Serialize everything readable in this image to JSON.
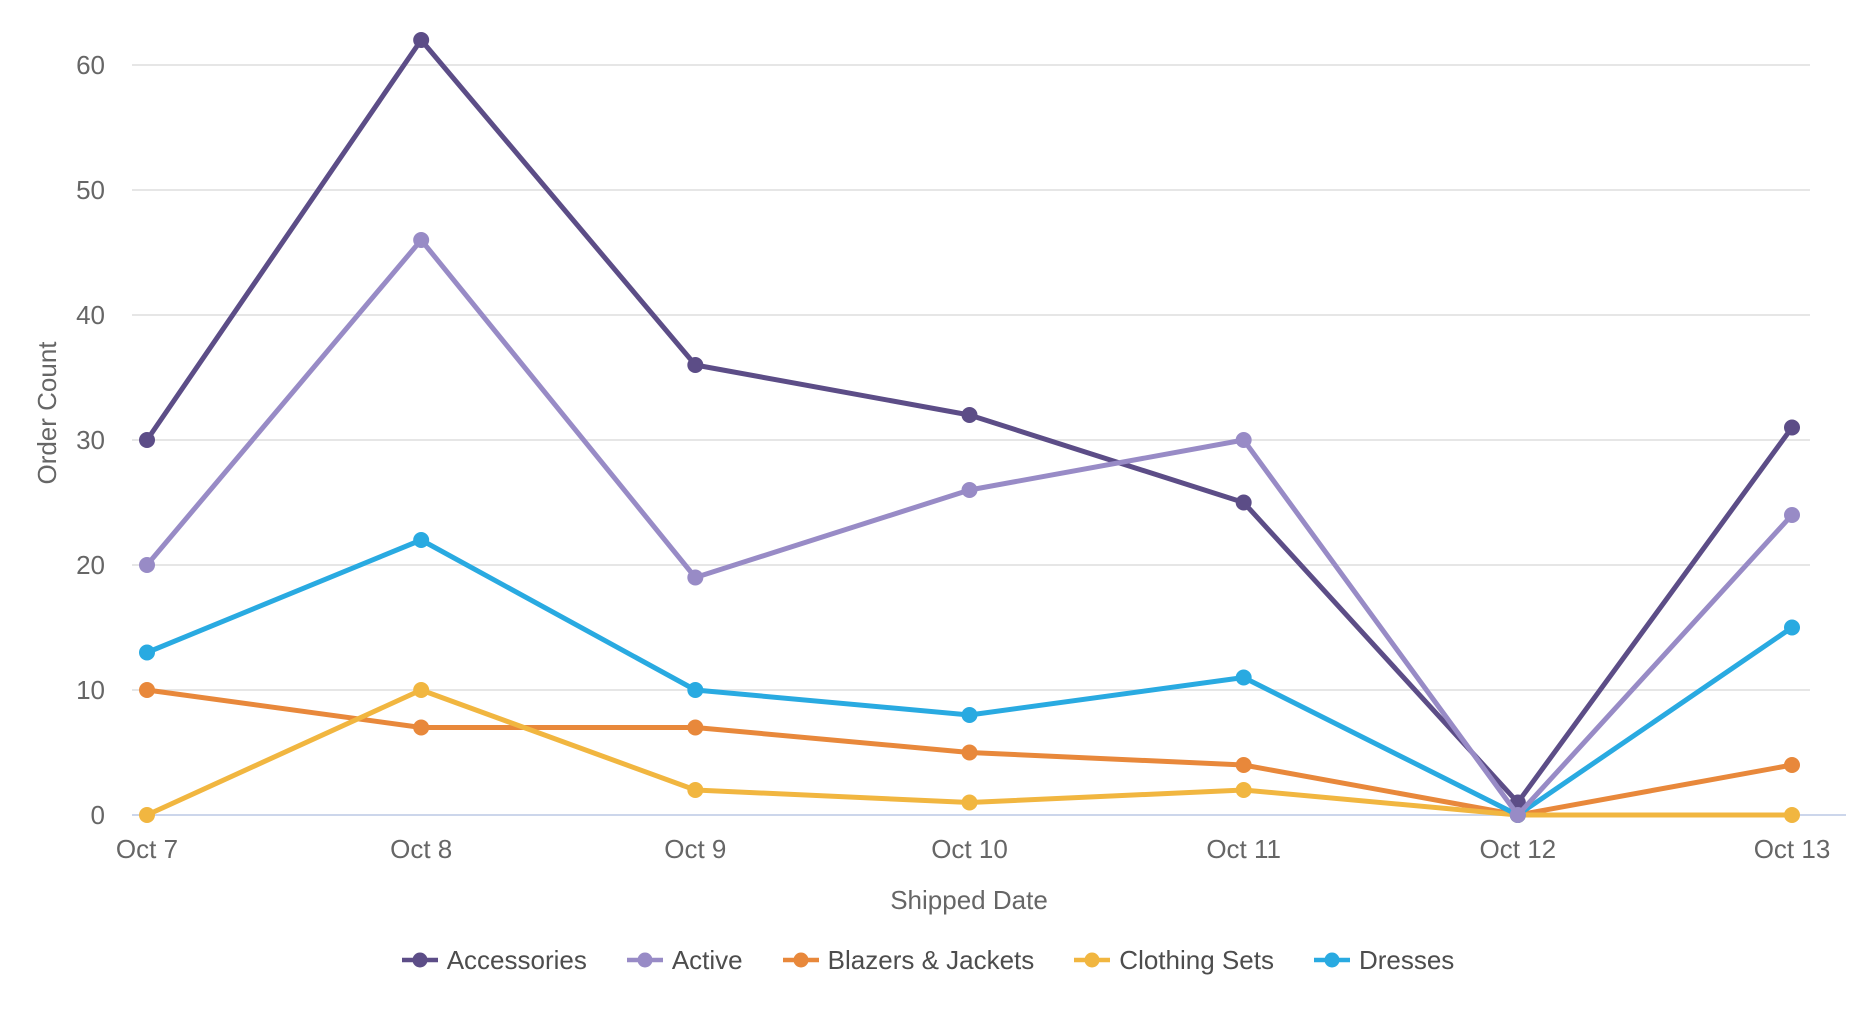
{
  "chart_data": {
    "type": "line",
    "title": "",
    "xlabel": "Shipped Date",
    "ylabel": "Order Count",
    "categories": [
      "Oct 7",
      "Oct 8",
      "Oct 9",
      "Oct 10",
      "Oct 11",
      "Oct 12",
      "Oct 13"
    ],
    "yticks": [
      0,
      10,
      20,
      30,
      40,
      50,
      60
    ],
    "ylim": [
      0,
      65
    ],
    "grid": true,
    "legend_position": "bottom-center",
    "series": [
      {
        "name": "Accessories",
        "color": "#5c4d87",
        "values": [
          30,
          62,
          36,
          32,
          25,
          1,
          31
        ]
      },
      {
        "name": "Active",
        "color": "#988bc6",
        "values": [
          20,
          46,
          19,
          26,
          30,
          0,
          24
        ]
      },
      {
        "name": "Blazers & Jackets",
        "color": "#e8883b",
        "values": [
          10,
          7,
          7,
          5,
          4,
          0,
          4
        ]
      },
      {
        "name": "Clothing Sets",
        "color": "#f1b640",
        "values": [
          0,
          10,
          2,
          1,
          2,
          0,
          0
        ]
      },
      {
        "name": "Dresses",
        "color": "#29aae1",
        "values": [
          13,
          22,
          10,
          8,
          11,
          0,
          15
        ]
      }
    ],
    "colors": {
      "background": "#ffffff",
      "gridline": "#e6e6e6",
      "zero_axis_line": "#ccd6eb",
      "tick_label": "#666666",
      "axis_title": "#666666",
      "legend_label": "#4d4d4d"
    }
  }
}
